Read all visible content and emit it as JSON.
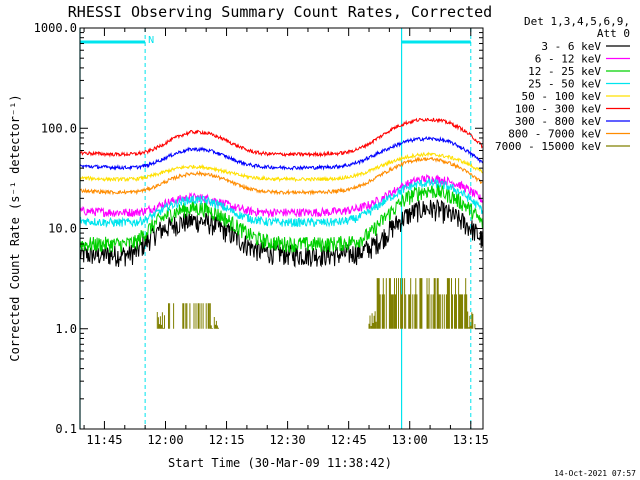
{
  "chart_data": {
    "type": "line",
    "title": "RHESSI Observing Summary Count Rates, Corrected",
    "xlabel": "Start Time (30-Mar-09 11:38:42)",
    "ylabel": "Corrected Count Rate (s⁻¹ detector⁻¹)",
    "yscale": "log",
    "ylim": [
      0.1,
      1000
    ],
    "xlim_minutes_after_1130": [
      9,
      108
    ],
    "x_tick_labels": [
      "11:45",
      "12:00",
      "12:15",
      "12:30",
      "12:45",
      "13:00",
      "13:15"
    ],
    "x_tick_minutes_after_1130": [
      15,
      30,
      45,
      60,
      75,
      90,
      105
    ],
    "y_tick_labels": [
      "1000.0",
      "100.0",
      "10.0",
      "1.0",
      "0.1"
    ],
    "y_tick_values": [
      1000,
      100,
      10,
      1,
      0.1
    ],
    "legend_header": [
      "Det 1,3,4,5,6,9,",
      "Att 0"
    ],
    "legend_placement": "right",
    "footer_date": "14-Oct-2021 07:57",
    "night_flag_label": "N",
    "flags": {
      "color": "#00e5ee",
      "solid_lines_at": [
        "11:39",
        "12:58"
      ],
      "dashed_lines_at": [
        "11:55",
        "13:15"
      ],
      "flag_bars": [
        [
          "11:39",
          "11:55"
        ],
        [
          "12:58",
          "13:15"
        ]
      ]
    },
    "time_grid_minutes": [
      9,
      15,
      30,
      45,
      60,
      75,
      90,
      105,
      108
    ],
    "series": [
      {
        "name": "3 - 6 keV",
        "color": "#000000",
        "noise": 0.25,
        "values": [
          5.5,
          5.5,
          5.5,
          5.5,
          5.5,
          5.8,
          7.5,
          9.5,
          10.5,
          11.5,
          12,
          11.8,
          11,
          9.5,
          8,
          6.8,
          6,
          5.8,
          5.7,
          5.5,
          5.5,
          5.5,
          5.5,
          5.5,
          5.6,
          5.8,
          6.5,
          8,
          10.5,
          13,
          15,
          16,
          15.5,
          14,
          12,
          10,
          7.5
        ]
      },
      {
        "name": "6 - 12 keV",
        "color": "#ff00ff",
        "noise": 0.1,
        "values": [
          15,
          14.8,
          14.6,
          14.5,
          14.5,
          14.5,
          15.2,
          16.8,
          18.5,
          19.8,
          20.5,
          20.2,
          19.2,
          17.5,
          16,
          15,
          14.6,
          14.5,
          14.5,
          14.5,
          14.5,
          14.5,
          14.6,
          14.8,
          15.2,
          16,
          17.5,
          20,
          23.5,
          27,
          30,
          31.5,
          31,
          29.5,
          27,
          23,
          19
        ]
      },
      {
        "name": "12 - 25 keV",
        "color": "#00d000",
        "noise": 0.18,
        "values": [
          7,
          7,
          7,
          7,
          7,
          7.3,
          9.5,
          12,
          14,
          15.2,
          16,
          15.8,
          14.5,
          12.5,
          10.5,
          8.8,
          7.8,
          7.3,
          7.1,
          7,
          7,
          7,
          7,
          7.1,
          7.3,
          7.8,
          9,
          12,
          15.5,
          19.5,
          22.5,
          24,
          23.5,
          21.5,
          18.5,
          15,
          11
        ]
      },
      {
        "name": "25 - 50 keV",
        "color": "#00e5ee",
        "noise": 0.1,
        "values": [
          12,
          11.8,
          11.6,
          11.5,
          11.5,
          11.6,
          12.5,
          14.5,
          16.8,
          18.5,
          19.5,
          19.2,
          18,
          16,
          14,
          12.8,
          12,
          11.6,
          11.5,
          11.5,
          11.5,
          11.5,
          11.5,
          11.6,
          12,
          13,
          15,
          18,
          21.5,
          25,
          27.5,
          28.5,
          28,
          26,
          23,
          19,
          15
        ]
      },
      {
        "name": "50 - 100 keV",
        "color": "#ffe000",
        "noise": 0.04,
        "values": [
          32,
          31.6,
          31.2,
          31,
          31,
          31.2,
          32.5,
          35,
          38,
          40.5,
          41.5,
          41,
          39.5,
          37,
          34.5,
          32.8,
          31.8,
          31.2,
          31,
          31,
          31,
          31,
          31.2,
          31.6,
          32.5,
          34.5,
          38,
          42.5,
          47,
          51,
          54,
          55,
          54,
          51.5,
          47.5,
          42,
          36
        ]
      },
      {
        "name": "100 - 300 keV",
        "color": "#ff0000",
        "noise": 0.04,
        "values": [
          57,
          56,
          55.5,
          55,
          55,
          55.5,
          58,
          65,
          75,
          85,
          92,
          91,
          85,
          76,
          67,
          60,
          56.5,
          55.5,
          55,
          55,
          55,
          55,
          55.5,
          56,
          58,
          63,
          72,
          85,
          100,
          112,
          120,
          123,
          121,
          113,
          100,
          83,
          65
        ]
      },
      {
        "name": "300 - 800 keV",
        "color": "#0000ff",
        "noise": 0.04,
        "values": [
          42,
          41.5,
          41,
          40.8,
          40.5,
          40.8,
          42.5,
          47,
          53,
          58.5,
          62,
          61.5,
          58,
          52.5,
          47,
          43.5,
          41.5,
          41,
          40.5,
          40.5,
          40.5,
          40.5,
          41,
          41.5,
          43,
          46.5,
          52,
          59,
          66,
          73,
          77.5,
          79,
          77.5,
          73,
          65,
          55,
          45
        ]
      },
      {
        "name": "800 - 7000 keV",
        "color": "#ff8c00",
        "noise": 0.04,
        "values": [
          24,
          23.6,
          23.2,
          23,
          23,
          23.2,
          24.5,
          27,
          30.5,
          33.5,
          35.5,
          35.2,
          33.5,
          30.5,
          27.5,
          25,
          23.8,
          23.2,
          23,
          23,
          23,
          23,
          23.2,
          23.6,
          24.5,
          26.5,
          30,
          35,
          40,
          45,
          48.5,
          49.5,
          48.5,
          45,
          40,
          34,
          28
        ]
      },
      {
        "name": "7000 - 15000 keV",
        "color": "#808000",
        "noise": 0,
        "bursts_minutes_after_1130": [
          [
            28,
            43
          ],
          [
            80,
            106
          ]
        ],
        "burst_levels": [
          [
            1.0,
            1.8
          ],
          [
            1.0,
            2.2,
            3.2
          ]
        ],
        "values": [
          null
        ]
      }
    ]
  }
}
